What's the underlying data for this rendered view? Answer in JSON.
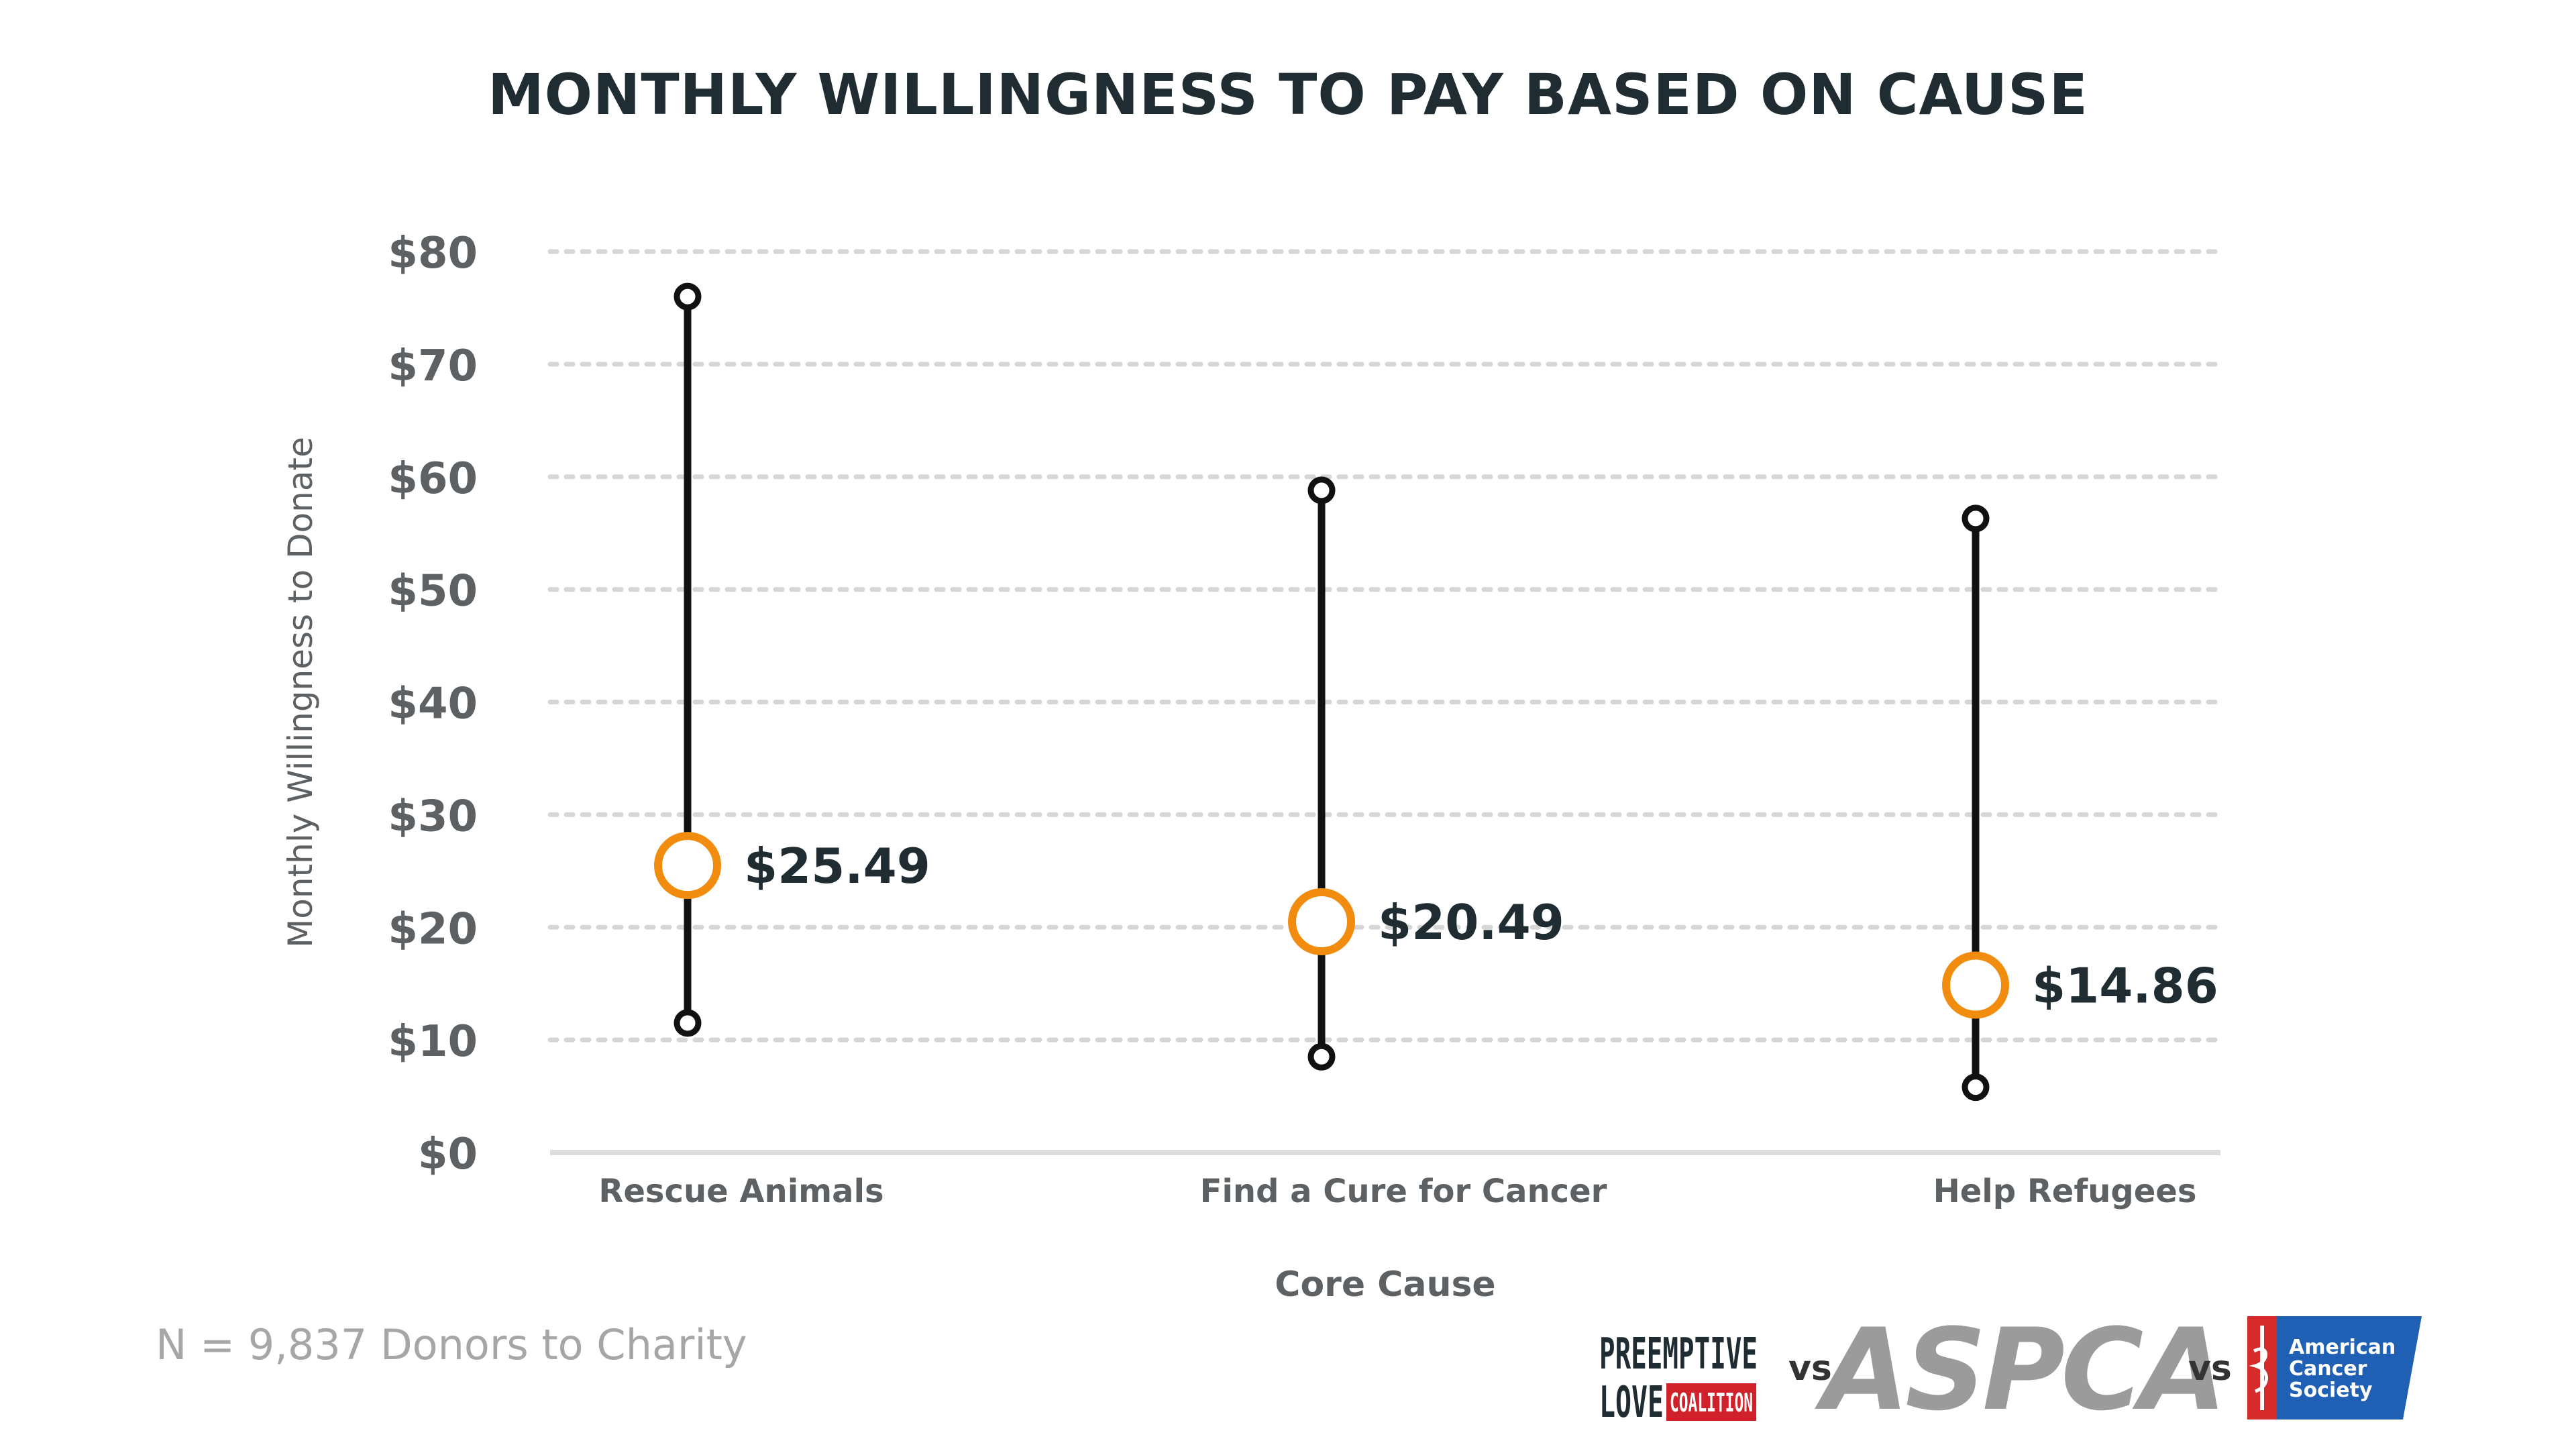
{
  "chart_data": {
    "type": "range-dot",
    "title": "MONTHLY WILLINGNESS TO PAY BASED ON CAUSE",
    "xlabel": "Core Cause",
    "ylabel": "Monthly Willingness to Donate",
    "ylim": [
      0,
      80
    ],
    "yticks": [
      "$0",
      "$10",
      "$20",
      "$30",
      "$40",
      "$50",
      "$60",
      "$70",
      "$80"
    ],
    "grid": true,
    "categories": [
      "Rescue Animals",
      "Find a Cure for Cancer",
      "Help Refugees"
    ],
    "means": [
      25.49,
      20.49,
      14.86
    ],
    "mean_labels": [
      "$25.49",
      "$20.49",
      "$14.86"
    ],
    "low": [
      11.5,
      8.5,
      5.8
    ],
    "high": [
      76,
      58.8,
      56.3
    ],
    "colors": {
      "line": "#111111",
      "marker": "#f28c0f",
      "grid": "#d6d6d6",
      "axis": "#dddddd",
      "tick_text": "#5e6163",
      "label_text": "#2b3236",
      "value_text": "#1f2d33"
    }
  },
  "footer": {
    "note": "N = 9,837 Donors to Charity",
    "vs": "vs",
    "logos": {
      "preemptive_love_line1": "PREEMPTIVE",
      "preemptive_love_line2": "LOVE",
      "preemptive_love_badge": "COALITION",
      "aspca": "ASPCA",
      "acs_line1": "American",
      "acs_line2": "Cancer",
      "acs_line3": "Society"
    }
  }
}
